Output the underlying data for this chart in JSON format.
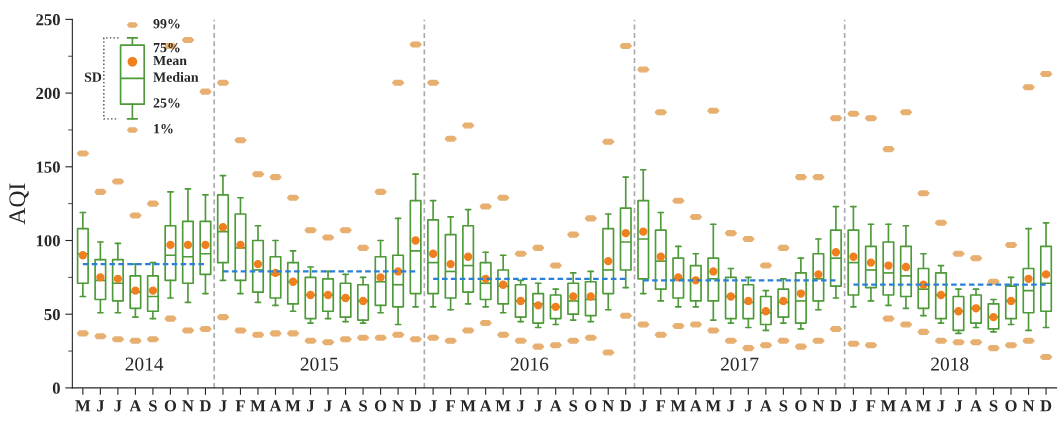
{
  "chart_data": {
    "type": "box",
    "ylabel": "AQI",
    "categories": [
      "M",
      "J",
      "J",
      "A",
      "S",
      "O",
      "N",
      "D",
      "J",
      "F",
      "M",
      "A",
      "M",
      "J",
      "J",
      "A",
      "S",
      "O",
      "N",
      "D",
      "J",
      "F",
      "M",
      "A",
      "M",
      "J",
      "J",
      "A",
      "S",
      "O",
      "N",
      "D",
      "J",
      "F",
      "M",
      "A",
      "M",
      "J",
      "J",
      "A",
      "S",
      "O",
      "N",
      "D",
      "J",
      "F",
      "M",
      "A",
      "M",
      "J",
      "J",
      "A",
      "S",
      "O",
      "N",
      "D"
    ],
    "ylim": [
      0,
      250
    ],
    "yticks": [
      0,
      50,
      100,
      150,
      200,
      250
    ],
    "grid": false,
    "legend": false,
    "annotations": [
      "99%",
      "75%",
      "Mean",
      "Median",
      "25%",
      "1%",
      "SD",
      "2014",
      "2015",
      "2016",
      "2017",
      "2018"
    ],
    "series": [
      {
        "color": "#4e9a3a",
        "boxes": [
          {
            "low": 62,
            "q1": 71,
            "median": 91,
            "q3": 108,
            "high": 119,
            "mean": 90,
            "outliers": [
              37,
              159
            ]
          },
          {
            "low": 51,
            "q1": 60,
            "median": 73,
            "q3": 87,
            "high": 99,
            "mean": 75,
            "outliers": [
              35,
              133
            ]
          },
          {
            "low": 51,
            "q1": 59,
            "median": 71,
            "q3": 87,
            "high": 98,
            "mean": 74,
            "outliers": [
              33,
              140
            ]
          },
          {
            "low": 48,
            "q1": 54,
            "median": 65,
            "q3": 76,
            "high": 84,
            "mean": 66,
            "outliers": [
              32,
              117
            ]
          },
          {
            "low": 47,
            "q1": 52,
            "median": 62,
            "q3": 76,
            "high": 85,
            "mean": 66,
            "outliers": [
              33,
              125
            ]
          },
          {
            "low": 61,
            "q1": 73,
            "median": 90,
            "q3": 110,
            "high": 133,
            "mean": 97,
            "outliers": [
              47,
              232
            ]
          },
          {
            "low": 58,
            "q1": 71,
            "median": 89,
            "q3": 113,
            "high": 135,
            "mean": 97,
            "outliers": [
              39,
              236
            ]
          },
          {
            "low": 64,
            "q1": 77,
            "median": 91,
            "q3": 113,
            "high": 131,
            "mean": 97,
            "outliers": [
              40,
              201
            ]
          },
          {
            "low": 73,
            "q1": 85,
            "median": 106,
            "q3": 131,
            "high": 144,
            "mean": 109,
            "outliers": [
              48,
              207
            ]
          },
          {
            "low": 64,
            "q1": 73,
            "median": 95,
            "q3": 118,
            "high": 129,
            "mean": 97,
            "outliers": [
              39,
              168
            ]
          },
          {
            "low": 58,
            "q1": 65,
            "median": 80,
            "q3": 100,
            "high": 110,
            "mean": 84,
            "outliers": [
              36,
              145
            ]
          },
          {
            "low": 56,
            "q1": 61,
            "median": 77,
            "q3": 89,
            "high": 100,
            "mean": 78,
            "outliers": [
              37,
              143
            ]
          },
          {
            "low": 52,
            "q1": 57,
            "median": 72,
            "q3": 85,
            "high": 93,
            "mean": 72,
            "outliers": [
              37,
              129
            ]
          },
          {
            "low": 44,
            "q1": 47,
            "median": 63,
            "q3": 75,
            "high": 82,
            "mean": 63,
            "outliers": [
              32,
              107
            ]
          },
          {
            "low": 47,
            "q1": 52,
            "median": 63,
            "q3": 74,
            "high": 79,
            "mean": 63,
            "outliers": [
              31,
              102
            ]
          },
          {
            "low": 45,
            "q1": 48,
            "median": 61,
            "q3": 71,
            "high": 77,
            "mean": 61,
            "outliers": [
              33,
              107
            ]
          },
          {
            "low": 44,
            "q1": 46,
            "median": 59,
            "q3": 70,
            "high": 75,
            "mean": 59,
            "outliers": [
              34,
              95
            ]
          },
          {
            "low": 51,
            "q1": 56,
            "median": 72,
            "q3": 89,
            "high": 100,
            "mean": 75,
            "outliers": [
              34,
              133
            ]
          },
          {
            "low": 43,
            "q1": 55,
            "median": 70,
            "q3": 90,
            "high": 115,
            "mean": 79,
            "outliers": [
              36,
              207
            ]
          },
          {
            "low": 55,
            "q1": 64,
            "median": 93,
            "q3": 127,
            "high": 145,
            "mean": 100,
            "outliers": [
              33,
              233
            ]
          },
          {
            "low": 55,
            "q1": 64,
            "median": 85,
            "q3": 114,
            "high": 127,
            "mean": 91,
            "outliers": [
              34,
              207
            ]
          },
          {
            "low": 53,
            "q1": 61,
            "median": 79,
            "q3": 104,
            "high": 116,
            "mean": 84,
            "outliers": [
              32,
              169
            ]
          },
          {
            "low": 57,
            "q1": 65,
            "median": 83,
            "q3": 110,
            "high": 121,
            "mean": 89,
            "outliers": [
              39,
              178
            ]
          },
          {
            "low": 55,
            "q1": 60,
            "median": 71,
            "q3": 85,
            "high": 92,
            "mean": 74,
            "outliers": [
              44,
              123
            ]
          },
          {
            "low": 51,
            "q1": 57,
            "median": 69,
            "q3": 80,
            "high": 90,
            "mean": 70,
            "outliers": [
              36,
              129
            ]
          },
          {
            "low": 45,
            "q1": 48,
            "median": 59,
            "q3": 70,
            "high": 73,
            "mean": 59,
            "outliers": [
              32,
              91
            ]
          },
          {
            "low": 41,
            "q1": 44,
            "median": 57,
            "q3": 64,
            "high": 71,
            "mean": 56,
            "outliers": [
              28,
              95
            ]
          },
          {
            "low": 43,
            "q1": 47,
            "median": 55,
            "q3": 63,
            "high": 67,
            "mean": 55,
            "outliers": [
              29,
              83
            ]
          },
          {
            "low": 46,
            "q1": 50,
            "median": 59,
            "q3": 71,
            "high": 78,
            "mean": 62,
            "outliers": [
              32,
              104
            ]
          },
          {
            "low": 45,
            "q1": 49,
            "median": 60,
            "q3": 72,
            "high": 79,
            "mean": 62,
            "outliers": [
              34,
              115
            ]
          },
          {
            "low": 53,
            "q1": 64,
            "median": 80,
            "q3": 108,
            "high": 118,
            "mean": 86,
            "outliers": [
              24,
              167
            ]
          },
          {
            "low": 68,
            "q1": 80,
            "median": 99,
            "q3": 122,
            "high": 143,
            "mean": 105,
            "outliers": [
              49,
              232
            ]
          },
          {
            "low": 64,
            "q1": 74,
            "median": 101,
            "q3": 127,
            "high": 148,
            "mean": 106,
            "outliers": [
              43,
              216
            ]
          },
          {
            "low": 59,
            "q1": 67,
            "median": 86,
            "q3": 107,
            "high": 119,
            "mean": 89,
            "outliers": [
              36,
              187
            ]
          },
          {
            "low": 55,
            "q1": 61,
            "median": 74,
            "q3": 88,
            "high": 96,
            "mean": 75,
            "outliers": [
              42,
              127
            ]
          },
          {
            "low": 55,
            "q1": 59,
            "median": 73,
            "q3": 83,
            "high": 91,
            "mean": 73,
            "outliers": [
              43,
              116
            ]
          },
          {
            "low": 46,
            "q1": 59,
            "median": 74,
            "q3": 88,
            "high": 111,
            "mean": 79,
            "outliers": [
              39,
              188
            ]
          },
          {
            "low": 44,
            "q1": 47,
            "median": 62,
            "q3": 75,
            "high": 81,
            "mean": 62,
            "outliers": [
              32,
              105
            ]
          },
          {
            "low": 41,
            "q1": 47,
            "median": 58,
            "q3": 70,
            "high": 75,
            "mean": 59,
            "outliers": [
              27,
              101
            ]
          },
          {
            "low": 39,
            "q1": 43,
            "median": 51,
            "q3": 62,
            "high": 66,
            "mean": 52,
            "outliers": [
              29,
              83
            ]
          },
          {
            "low": 44,
            "q1": 48,
            "median": 58,
            "q3": 67,
            "high": 74,
            "mean": 59,
            "outliers": [
              32,
              95
            ]
          },
          {
            "low": 40,
            "q1": 44,
            "median": 59,
            "q3": 78,
            "high": 88,
            "mean": 64,
            "outliers": [
              28,
              143
            ]
          },
          {
            "low": 53,
            "q1": 59,
            "median": 74,
            "q3": 91,
            "high": 101,
            "mean": 77,
            "outliers": [
              32,
              143
            ]
          },
          {
            "low": 61,
            "q1": 69,
            "median": 88,
            "q3": 107,
            "high": 123,
            "mean": 92,
            "outliers": [
              40,
              183
            ]
          },
          {
            "low": 55,
            "q1": 63,
            "median": 85,
            "q3": 107,
            "high": 123,
            "mean": 89,
            "outliers": [
              30,
              186
            ]
          },
          {
            "low": 59,
            "q1": 68,
            "median": 80,
            "q3": 96,
            "high": 111,
            "mean": 85,
            "outliers": [
              29,
              183
            ]
          },
          {
            "low": 56,
            "q1": 63,
            "median": 78,
            "q3": 99,
            "high": 111,
            "mean": 83,
            "outliers": [
              47,
              162
            ]
          },
          {
            "low": 54,
            "q1": 62,
            "median": 76,
            "q3": 96,
            "high": 110,
            "mean": 82,
            "outliers": [
              43,
              187
            ]
          },
          {
            "low": 49,
            "q1": 54,
            "median": 67,
            "q3": 81,
            "high": 91,
            "mean": 70,
            "outliers": [
              38,
              132
            ]
          },
          {
            "low": 44,
            "q1": 47,
            "median": 63,
            "q3": 78,
            "high": 83,
            "mean": 63,
            "outliers": [
              32,
              112
            ]
          },
          {
            "low": 37,
            "q1": 39,
            "median": 52,
            "q3": 62,
            "high": 67,
            "mean": 52,
            "outliers": [
              31,
              91
            ]
          },
          {
            "low": 41,
            "q1": 44,
            "median": 54,
            "q3": 63,
            "high": 67,
            "mean": 54,
            "outliers": [
              31,
              88
            ]
          },
          {
            "low": 38,
            "q1": 40,
            "median": 48,
            "q3": 57,
            "high": 60,
            "mean": 48,
            "outliers": [
              27,
              72
            ]
          },
          {
            "low": 43,
            "q1": 47,
            "median": 59,
            "q3": 69,
            "high": 75,
            "mean": 59,
            "outliers": [
              29,
              97
            ]
          },
          {
            "low": 39,
            "q1": 51,
            "median": 66,
            "q3": 81,
            "high": 108,
            "mean": 74,
            "outliers": [
              32,
              204
            ]
          },
          {
            "low": 41,
            "q1": 52,
            "median": 71,
            "q3": 96,
            "high": 112,
            "mean": 77,
            "outliers": [
              21,
              213
            ]
          }
        ]
      },
      {
        "type": "line",
        "color": "#2a7fd8",
        "line_style": "dashed",
        "marker": "none",
        "values": [
          84,
          84,
          84,
          84,
          84,
          84,
          84,
          84,
          null,
          null,
          null,
          null,
          null,
          null,
          null,
          null,
          null,
          null,
          null,
          null,
          null,
          null,
          null,
          null,
          null,
          null,
          null,
          null,
          null,
          null,
          null,
          null,
          null,
          null,
          null,
          null,
          null,
          null,
          null,
          null,
          null,
          null,
          null,
          null,
          null,
          null,
          null,
          null,
          null,
          null,
          null,
          null,
          null,
          null,
          null,
          null
        ]
      },
      {
        "type": "line",
        "color": "#2a7fd8",
        "line_style": "dashed",
        "marker": "none",
        "values": [
          null,
          null,
          null,
          null,
          null,
          null,
          null,
          null,
          79,
          79,
          79,
          79,
          79,
          79,
          79,
          79,
          79,
          79,
          79,
          79,
          null,
          null,
          null,
          null,
          null,
          null,
          null,
          null,
          null,
          null,
          null,
          null,
          null,
          null,
          null,
          null,
          null,
          null,
          null,
          null,
          null,
          null,
          null,
          null,
          null,
          null,
          null,
          null,
          null,
          null,
          null,
          null,
          null,
          null,
          null,
          null
        ]
      },
      {
        "type": "line",
        "color": "#2a7fd8",
        "line_style": "dashed",
        "marker": "none",
        "values": [
          null,
          null,
          null,
          null,
          null,
          null,
          null,
          null,
          null,
          null,
          null,
          null,
          null,
          null,
          null,
          null,
          null,
          null,
          null,
          null,
          74,
          74,
          74,
          74,
          74,
          74,
          74,
          74,
          74,
          74,
          74,
          74,
          null,
          null,
          null,
          null,
          null,
          null,
          null,
          null,
          null,
          null,
          null,
          null,
          null,
          null,
          null,
          null,
          null,
          null,
          null,
          null,
          null,
          null,
          null,
          null
        ]
      },
      {
        "type": "line",
        "color": "#2a7fd8",
        "line_style": "dashed",
        "marker": "none",
        "values": [
          null,
          null,
          null,
          null,
          null,
          null,
          null,
          null,
          null,
          null,
          null,
          null,
          null,
          null,
          null,
          null,
          null,
          null,
          null,
          null,
          null,
          null,
          null,
          null,
          null,
          null,
          null,
          null,
          null,
          null,
          null,
          null,
          73,
          73,
          73,
          73,
          73,
          73,
          73,
          73,
          73,
          73,
          73,
          73,
          null,
          null,
          null,
          null,
          null,
          null,
          null,
          null,
          null,
          null,
          null,
          null
        ]
      },
      {
        "type": "line",
        "color": "#2a7fd8",
        "line_style": "dashed",
        "marker": "none",
        "values": [
          null,
          null,
          null,
          null,
          null,
          null,
          null,
          null,
          null,
          null,
          null,
          null,
          null,
          null,
          null,
          null,
          null,
          null,
          null,
          null,
          null,
          null,
          null,
          null,
          null,
          null,
          null,
          null,
          null,
          null,
          null,
          null,
          null,
          null,
          null,
          null,
          null,
          null,
          null,
          null,
          null,
          null,
          null,
          null,
          70,
          70,
          70,
          70,
          70,
          70,
          70,
          70,
          70,
          70,
          70,
          70
        ]
      }
    ]
  }
}
